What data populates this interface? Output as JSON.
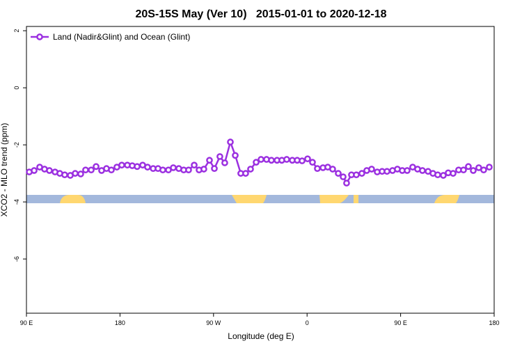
{
  "chart_data": {
    "type": "line",
    "title": "20S-15S May (Ver 10)   2015-01-01 to 2020-12-18",
    "x_label": "Longitude (deg E)",
    "y_label": "XCO2 - MLO trend (ppm)",
    "xlim": [
      90,
      540
    ],
    "xticks": [
      {
        "value": 90,
        "label": "90 E"
      },
      {
        "value": 180,
        "label": "180"
      },
      {
        "value": 270,
        "label": "90 W"
      },
      {
        "value": 360,
        "label": "0"
      },
      {
        "value": 450,
        "label": "90 E"
      },
      {
        "value": 540,
        "label": "180"
      }
    ],
    "ylim": [
      -7.9,
      2.15
    ],
    "yticks": [
      -6,
      -4,
      -2,
      0,
      2
    ],
    "legend": "top-left",
    "x": [
      92.7,
      97.4,
      102.7,
      107.4,
      112.1,
      117.5,
      122.1,
      126.8,
      132.2,
      136.9,
      142.2,
      146.9,
      152.3,
      157,
      162.3,
      167,
      171.7,
      177,
      181.7,
      187.1,
      191.8,
      196.5,
      201.8,
      206.5,
      211.9,
      216.6,
      221.2,
      226.6,
      231.3,
      236.6,
      241.3,
      246,
      251.4,
      256.1,
      260.7,
      266.1,
      270.8,
      276.1,
      280.8,
      286.2,
      290.9,
      296.2,
      300.9,
      305.6,
      311,
      315.7,
      321,
      325.7,
      331.1,
      335.7,
      340.4,
      345.8,
      350.5,
      355.2,
      360.5,
      365.2,
      369.9,
      375.3,
      379.9,
      384.6,
      390,
      394.7,
      398,
      402.7,
      407.4,
      412.7,
      417.4,
      422.1,
      427.5,
      432.2,
      436.9,
      442.2,
      446.9,
      451.6,
      456.3,
      461.6,
      466.3,
      471,
      476.4,
      481.1,
      485.7,
      491.1,
      495.8,
      500.5,
      505.8,
      510.5,
      515.2,
      519.9,
      525.2,
      529.9,
      535.3
    ],
    "series": [
      {
        "name": "Land (Nadir&Glint) and Ocean (Glint)",
        "color": "#9b30e0",
        "values": [
          -2.95,
          -2.9,
          -2.78,
          -2.85,
          -2.9,
          -2.95,
          -3.0,
          -3.05,
          -3.07,
          -3.0,
          -3.02,
          -2.88,
          -2.88,
          -2.76,
          -2.9,
          -2.83,
          -2.88,
          -2.78,
          -2.71,
          -2.71,
          -2.73,
          -2.76,
          -2.71,
          -2.78,
          -2.83,
          -2.83,
          -2.88,
          -2.88,
          -2.8,
          -2.83,
          -2.88,
          -2.88,
          -2.71,
          -2.88,
          -2.85,
          -2.54,
          -2.83,
          -2.41,
          -2.63,
          -1.9,
          -2.37,
          -3.0,
          -3.0,
          -2.85,
          -2.61,
          -2.51,
          -2.51,
          -2.54,
          -2.54,
          -2.54,
          -2.51,
          -2.54,
          -2.54,
          -2.56,
          -2.49,
          -2.61,
          -2.83,
          -2.8,
          -2.78,
          -2.85,
          -3.0,
          -3.12,
          -3.34,
          -3.05,
          -3.05,
          -3.0,
          -2.9,
          -2.85,
          -2.95,
          -2.93,
          -2.93,
          -2.9,
          -2.85,
          -2.9,
          -2.9,
          -2.78,
          -2.85,
          -2.9,
          -2.93,
          -3.0,
          -3.05,
          -3.07,
          -2.98,
          -3.0,
          -2.88,
          -2.88,
          -2.76,
          -2.9,
          -2.8,
          -2.88,
          -2.78
        ]
      }
    ]
  }
}
